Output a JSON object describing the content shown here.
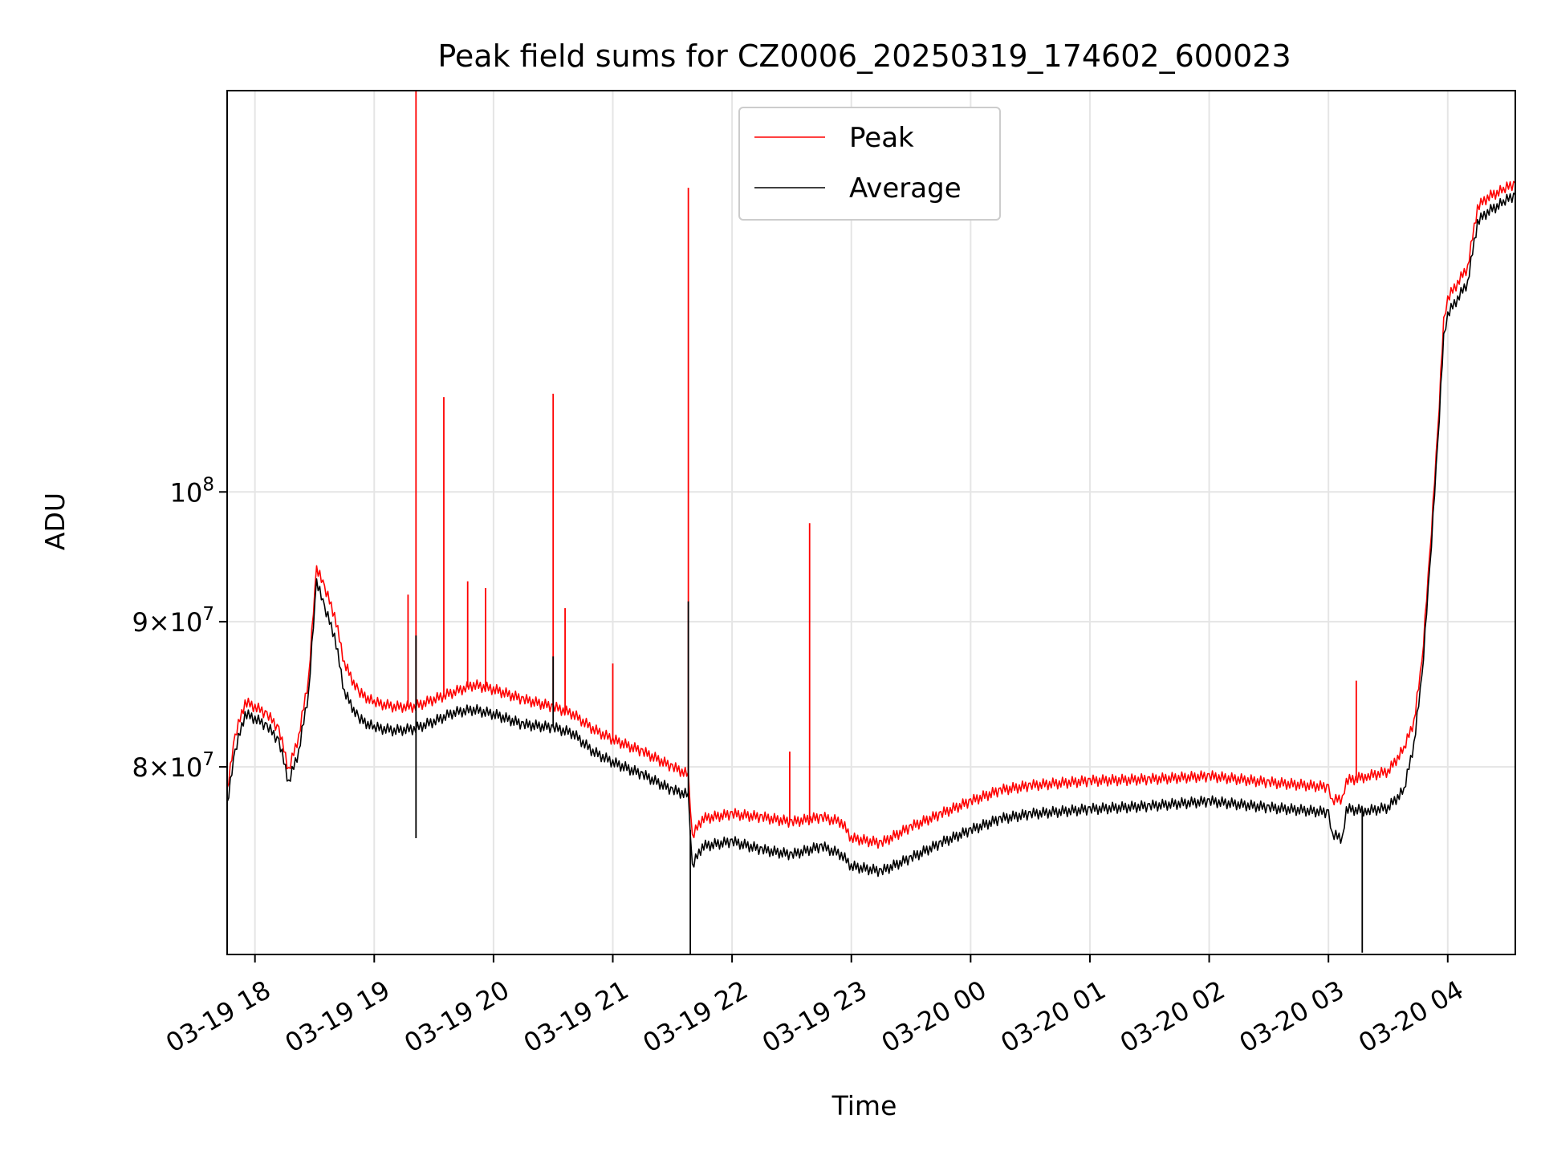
{
  "chart_data": {
    "type": "line",
    "title": "Peak field sums for CZ0006_20250319_174602_600023",
    "xlabel": "Time",
    "ylabel": "ADU",
    "yscale": "log",
    "grid": true,
    "legend_position": "top-center",
    "xlim": [
      "2025-03-19 17:46",
      "2025-03-20 04:34"
    ],
    "ylim": [
      68700000,
      138500000
    ],
    "x_ticks": [
      {
        "t": "2025-03-19 18:00",
        "label": "03-19 18"
      },
      {
        "t": "2025-03-19 19:00",
        "label": "03-19 19"
      },
      {
        "t": "2025-03-19 20:00",
        "label": "03-19 20"
      },
      {
        "t": "2025-03-19 21:00",
        "label": "03-19 21"
      },
      {
        "t": "2025-03-19 22:00",
        "label": "03-19 22"
      },
      {
        "t": "2025-03-19 23:00",
        "label": "03-19 23"
      },
      {
        "t": "2025-03-20 00:00",
        "label": "03-20 00"
      },
      {
        "t": "2025-03-20 01:00",
        "label": "03-20 01"
      },
      {
        "t": "2025-03-20 02:00",
        "label": "03-20 02"
      },
      {
        "t": "2025-03-20 03:00",
        "label": "03-20 03"
      },
      {
        "t": "2025-03-20 04:00",
        "label": "03-20 04"
      }
    ],
    "y_ticks": [
      {
        "value": 80000000,
        "base": "8",
        "exp": "7"
      },
      {
        "value": 90000000,
        "base": "9",
        "exp": "7"
      },
      {
        "value": 100000000,
        "base": "",
        "exp": "8"
      }
    ],
    "series": [
      {
        "name": "Peak",
        "color": "#ff0000",
        "points": [
          [
            "2025-03-19 17:46",
            78500000
          ],
          [
            "2025-03-19 17:50",
            82000000
          ],
          [
            "2025-03-19 17:55",
            84300000
          ],
          [
            "2025-03-19 18:00",
            84000000
          ],
          [
            "2025-03-19 18:06",
            83500000
          ],
          [
            "2025-03-19 18:12",
            82500000
          ],
          [
            "2025-03-19 18:17",
            79800000
          ],
          [
            "2025-03-19 18:22",
            82000000
          ],
          [
            "2025-03-19 18:27",
            86000000
          ],
          [
            "2025-03-19 18:31",
            94000000
          ],
          [
            "2025-03-19 18:35",
            92500000
          ],
          [
            "2025-03-19 18:40",
            90500000
          ],
          [
            "2025-03-19 18:45",
            87000000
          ],
          [
            "2025-03-19 18:52",
            85000000
          ],
          [
            "2025-03-19 19:00",
            84300000
          ],
          [
            "2025-03-19 19:10",
            84000000
          ],
          [
            "2025-03-19 19:20",
            84000000
          ],
          [
            "2025-03-19 19:30",
            84500000
          ],
          [
            "2025-03-19 19:40",
            85000000
          ],
          [
            "2025-03-19 19:50",
            85500000
          ],
          [
            "2025-03-19 20:00",
            85200000
          ],
          [
            "2025-03-19 20:15",
            84500000
          ],
          [
            "2025-03-19 20:30",
            84000000
          ],
          [
            "2025-03-19 20:40",
            83500000
          ],
          [
            "2025-03-19 20:50",
            82500000
          ],
          [
            "2025-03-19 21:00",
            81800000
          ],
          [
            "2025-03-19 21:15",
            81000000
          ],
          [
            "2025-03-19 21:30",
            80000000
          ],
          [
            "2025-03-19 21:38",
            79500000
          ],
          [
            "2025-03-19 21:40",
            75600000
          ],
          [
            "2025-03-19 21:45",
            76700000
          ],
          [
            "2025-03-19 22:00",
            77000000
          ],
          [
            "2025-03-19 22:15",
            76800000
          ],
          [
            "2025-03-19 22:30",
            76500000
          ],
          [
            "2025-03-19 22:45",
            76800000
          ],
          [
            "2025-03-19 22:55",
            76500000
          ],
          [
            "2025-03-19 23:00",
            75500000
          ],
          [
            "2025-03-19 23:15",
            75200000
          ],
          [
            "2025-03-19 23:30",
            76200000
          ],
          [
            "2025-03-19 23:45",
            77000000
          ],
          [
            "2025-03-20 00:00",
            77800000
          ],
          [
            "2025-03-20 00:15",
            78500000
          ],
          [
            "2025-03-20 00:30",
            78800000
          ],
          [
            "2025-03-20 01:00",
            79100000
          ],
          [
            "2025-03-20 01:30",
            79200000
          ],
          [
            "2025-03-20 02:00",
            79400000
          ],
          [
            "2025-03-20 02:30",
            79000000
          ],
          [
            "2025-03-20 03:00",
            78700000
          ],
          [
            "2025-03-20 03:02",
            77800000
          ],
          [
            "2025-03-20 03:07",
            78000000
          ],
          [
            "2025-03-20 03:09",
            79100000
          ],
          [
            "2025-03-20 03:20",
            79400000
          ],
          [
            "2025-03-20 03:30",
            79700000
          ],
          [
            "2025-03-20 03:38",
            81200000
          ],
          [
            "2025-03-20 03:43",
            83000000
          ],
          [
            "2025-03-20 03:47",
            87000000
          ],
          [
            "2025-03-20 03:51",
            95000000
          ],
          [
            "2025-03-20 03:55",
            105000000
          ],
          [
            "2025-03-20 03:58",
            115000000
          ],
          [
            "2025-03-20 04:00",
            117000000
          ],
          [
            "2025-03-20 04:05",
            118500000
          ],
          [
            "2025-03-20 04:10",
            120000000
          ],
          [
            "2025-03-20 04:15",
            126000000
          ],
          [
            "2025-03-20 04:20",
            127000000
          ],
          [
            "2025-03-20 04:28",
            127800000
          ],
          [
            "2025-03-20 04:34",
            128500000
          ]
        ],
        "spikes": [
          [
            "2025-03-19 19:17",
            92000000
          ],
          [
            "2025-03-19 19:21",
            138500000
          ],
          [
            "2025-03-19 19:35",
            108000000
          ],
          [
            "2025-03-19 19:47",
            93000000
          ],
          [
            "2025-03-19 19:56",
            92500000
          ],
          [
            "2025-03-19 20:30",
            108300000
          ],
          [
            "2025-03-19 20:36",
            91000000
          ],
          [
            "2025-03-19 21:00",
            87000000
          ],
          [
            "2025-03-19 21:38",
            128000000
          ],
          [
            "2025-03-19 22:29",
            81000000
          ],
          [
            "2025-03-19 22:39",
            97500000
          ],
          [
            "2025-03-20 03:14",
            85800000
          ]
        ]
      },
      {
        "name": "Average",
        "color": "#000000",
        "points": [
          [
            "2025-03-19 17:46",
            77600000
          ],
          [
            "2025-03-19 17:50",
            81000000
          ],
          [
            "2025-03-19 17:55",
            83500000
          ],
          [
            "2025-03-19 18:00",
            83200000
          ],
          [
            "2025-03-19 18:06",
            82700000
          ],
          [
            "2025-03-19 18:12",
            81700000
          ],
          [
            "2025-03-19 18:17",
            79000000
          ],
          [
            "2025-03-19 18:22",
            81000000
          ],
          [
            "2025-03-19 18:27",
            85000000
          ],
          [
            "2025-03-19 18:31",
            93000000
          ],
          [
            "2025-03-19 18:35",
            91000000
          ],
          [
            "2025-03-19 18:40",
            89000000
          ],
          [
            "2025-03-19 18:45",
            85000000
          ],
          [
            "2025-03-19 18:52",
            83200000
          ],
          [
            "2025-03-19 19:00",
            82600000
          ],
          [
            "2025-03-19 19:10",
            82400000
          ],
          [
            "2025-03-19 19:20",
            82500000
          ],
          [
            "2025-03-19 19:30",
            83000000
          ],
          [
            "2025-03-19 19:40",
            83600000
          ],
          [
            "2025-03-19 19:50",
            83800000
          ],
          [
            "2025-03-19 20:00",
            83500000
          ],
          [
            "2025-03-19 20:15",
            82800000
          ],
          [
            "2025-03-19 20:30",
            82600000
          ],
          [
            "2025-03-19 20:40",
            82200000
          ],
          [
            "2025-03-19 20:50",
            81000000
          ],
          [
            "2025-03-19 21:00",
            80300000
          ],
          [
            "2025-03-19 21:15",
            79500000
          ],
          [
            "2025-03-19 21:30",
            78500000
          ],
          [
            "2025-03-19 21:38",
            78200000
          ],
          [
            "2025-03-19 21:40",
            73800000
          ],
          [
            "2025-03-19 21:45",
            75000000
          ],
          [
            "2025-03-19 22:00",
            75300000
          ],
          [
            "2025-03-19 22:15",
            74800000
          ],
          [
            "2025-03-19 22:30",
            74500000
          ],
          [
            "2025-03-19 22:45",
            75000000
          ],
          [
            "2025-03-19 22:55",
            74500000
          ],
          [
            "2025-03-19 23:00",
            73800000
          ],
          [
            "2025-03-19 23:15",
            73500000
          ],
          [
            "2025-03-19 23:30",
            74300000
          ],
          [
            "2025-03-19 23:45",
            75200000
          ],
          [
            "2025-03-20 00:00",
            76000000
          ],
          [
            "2025-03-20 00:15",
            76700000
          ],
          [
            "2025-03-20 00:30",
            77000000
          ],
          [
            "2025-03-20 01:00",
            77300000
          ],
          [
            "2025-03-20 01:30",
            77500000
          ],
          [
            "2025-03-20 02:00",
            77800000
          ],
          [
            "2025-03-20 02:30",
            77400000
          ],
          [
            "2025-03-20 03:00",
            77100000
          ],
          [
            "2025-03-20 03:02",
            75700000
          ],
          [
            "2025-03-20 03:07",
            75500000
          ],
          [
            "2025-03-20 03:09",
            77300000
          ],
          [
            "2025-03-20 03:20",
            77200000
          ],
          [
            "2025-03-20 03:30",
            77400000
          ],
          [
            "2025-03-20 03:38",
            78500000
          ],
          [
            "2025-03-20 03:43",
            81500000
          ],
          [
            "2025-03-20 03:47",
            86000000
          ],
          [
            "2025-03-20 03:51",
            94000000
          ],
          [
            "2025-03-20 03:55",
            104000000
          ],
          [
            "2025-03-20 03:58",
            113500000
          ],
          [
            "2025-03-20 04:00",
            115500000
          ],
          [
            "2025-03-20 04:05",
            117000000
          ],
          [
            "2025-03-20 04:10",
            118500000
          ],
          [
            "2025-03-20 04:15",
            124500000
          ],
          [
            "2025-03-20 04:20",
            125500000
          ],
          [
            "2025-03-20 04:28",
            126500000
          ],
          [
            "2025-03-20 04:34",
            127300000
          ]
        ],
        "spikes": [
          [
            "2025-03-19 19:21",
            89000000
          ],
          [
            "2025-03-19 19:21",
            75500000
          ],
          [
            "2025-03-19 20:30",
            87500000
          ],
          [
            "2025-03-19 21:38",
            91500000
          ],
          [
            "2025-03-19 21:39",
            68700000
          ],
          [
            "2025-03-20 03:17",
            68800000
          ]
        ]
      }
    ]
  }
}
